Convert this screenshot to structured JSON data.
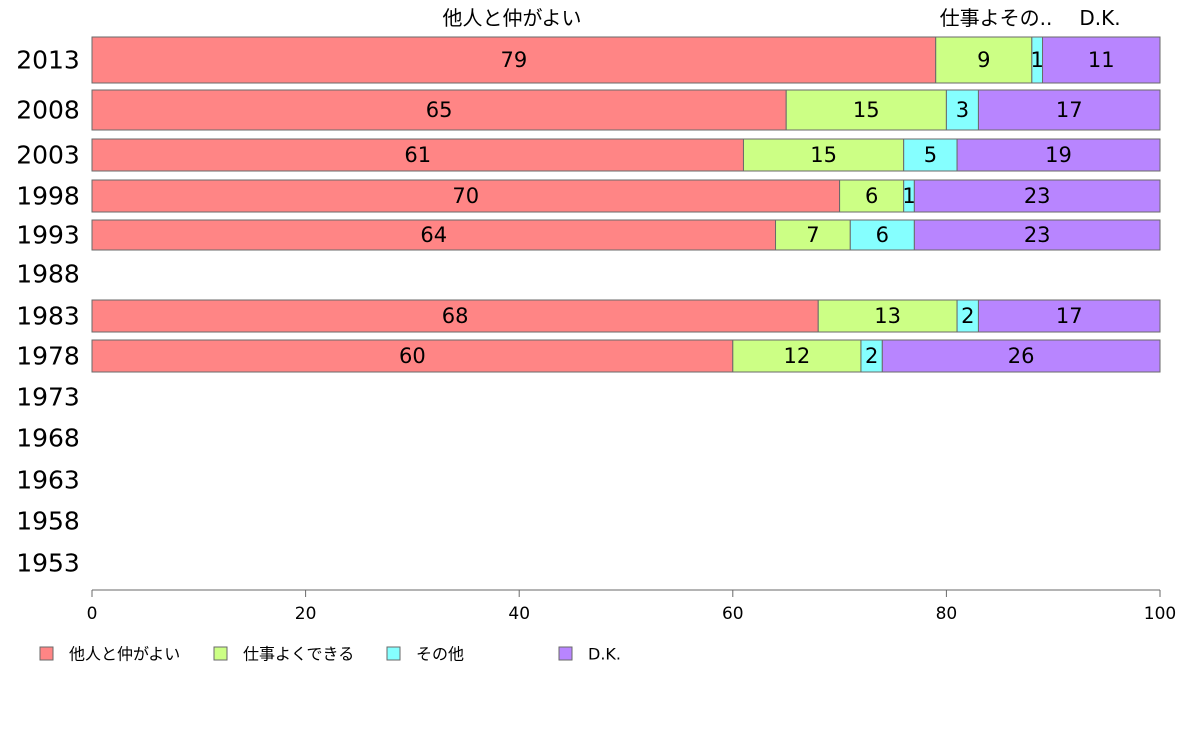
{
  "chart_data": {
    "type": "bar",
    "orientation": "horizontal",
    "stacked": true,
    "categories": [
      "2013",
      "2008",
      "2003",
      "1998",
      "1993",
      "1988",
      "1983",
      "1978",
      "1973",
      "1968",
      "1963",
      "1958",
      "1953"
    ],
    "series": [
      {
        "name": "他人と仲がよい",
        "color": "#ff8585",
        "values": [
          79,
          65,
          61,
          70,
          64,
          null,
          68,
          60,
          null,
          null,
          null,
          null,
          null
        ]
      },
      {
        "name": "仕事よくできる",
        "color": "#ccff85",
        "values": [
          9,
          15,
          15,
          6,
          7,
          null,
          13,
          12,
          null,
          null,
          null,
          null,
          null
        ]
      },
      {
        "name": "その他",
        "color": "#85ffff",
        "values": [
          1,
          3,
          5,
          1,
          6,
          null,
          2,
          2,
          null,
          null,
          null,
          null,
          null
        ]
      },
      {
        "name": "D.K.",
        "color": "#b885ff",
        "values": [
          11,
          17,
          19,
          23,
          23,
          null,
          17,
          26,
          null,
          null,
          null,
          null,
          null
        ]
      }
    ],
    "top_labels": [
      "他人と仲がよい",
      "仕事よその..",
      "D.K."
    ],
    "xlim": [
      0,
      100
    ],
    "xticks": [
      "0",
      "20",
      "40",
      "60",
      "80",
      "100"
    ],
    "legend_position": "bottom",
    "grid": false
  }
}
